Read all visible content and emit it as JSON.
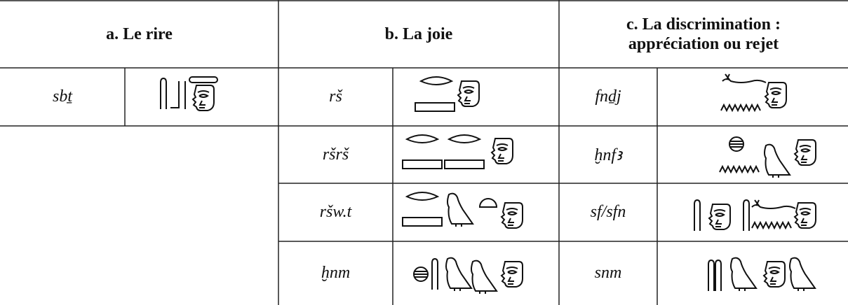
{
  "header": {
    "a": "a. Le rire",
    "b": "b. La joie",
    "c": [
      "c. La discrimination :",
      "appréciation ou rejet"
    ]
  },
  "rire": [
    "sbṯ"
  ],
  "joie": [
    "rš",
    "ršrš",
    "ršw.t",
    "ḫnm"
  ],
  "discrimination": [
    "fnḏj",
    "ḫnfꜣ",
    "sf/sfn",
    "snm"
  ]
}
